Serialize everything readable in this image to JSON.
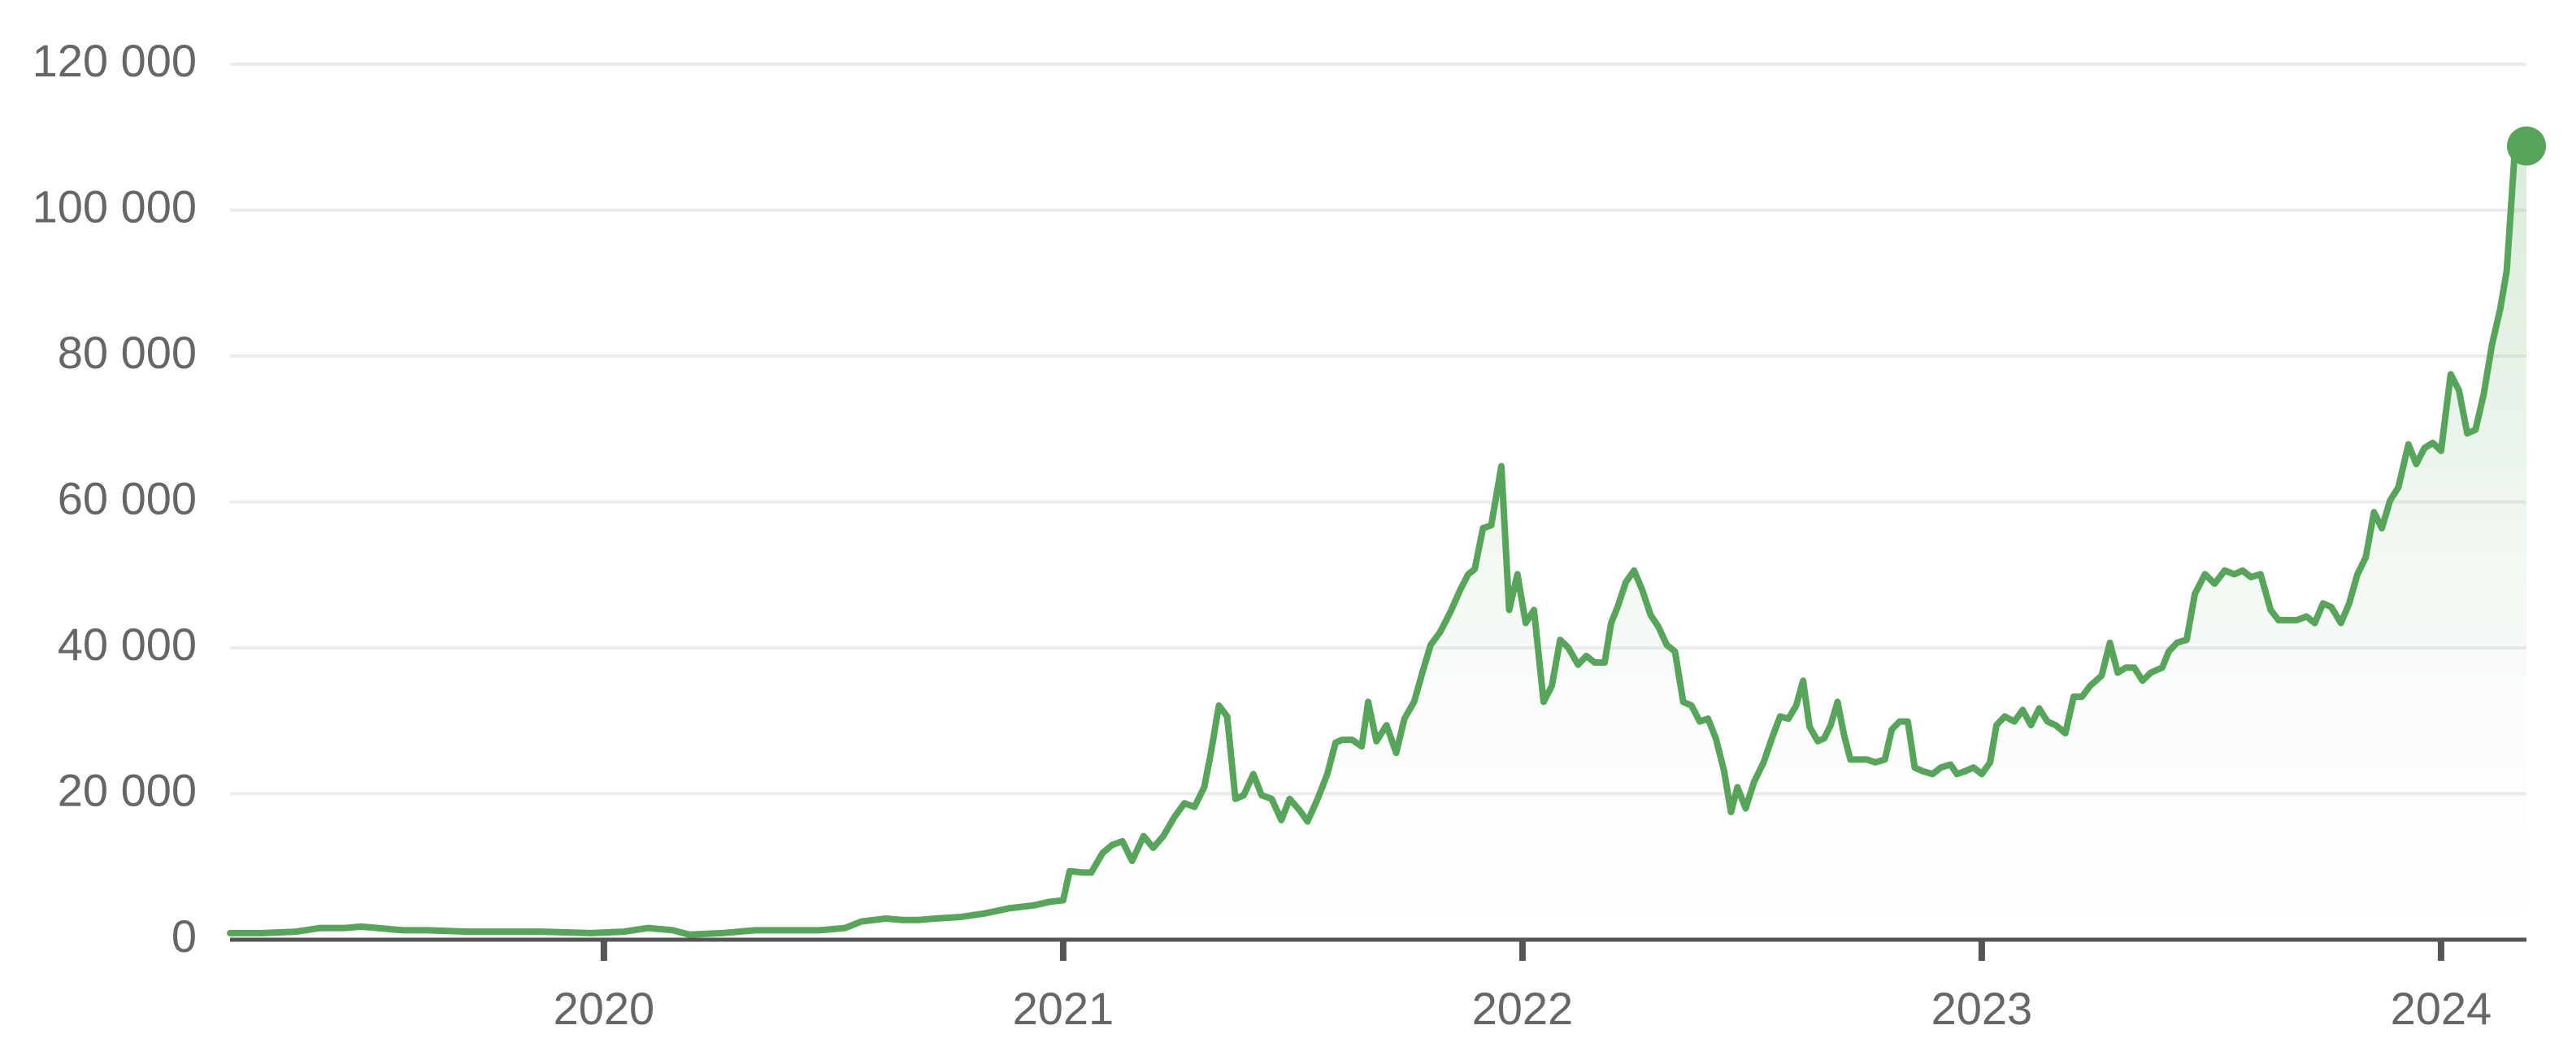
{
  "chart_data": {
    "type": "line",
    "color": "#57a55a",
    "grid": true,
    "fill": true,
    "x": [
      2019.186,
      2019.257,
      2019.329,
      2019.382,
      2019.436,
      2019.471,
      2019.507,
      2019.561,
      2019.614,
      2019.704,
      2019.757,
      2019.864,
      2019.971,
      2020.043,
      2020.096,
      2020.15,
      2020.186,
      2020.257,
      2020.329,
      2020.4,
      2020.471,
      2020.525,
      2020.561,
      2020.614,
      2020.65,
      2020.686,
      2020.721,
      2020.775,
      2020.829,
      2020.882,
      2020.936,
      2020.971,
      2021.0,
      2021.014,
      2021.043,
      2021.061,
      2021.086,
      2021.107,
      2021.129,
      2021.15,
      2021.175,
      2021.196,
      2021.218,
      2021.243,
      2021.264,
      2021.286,
      2021.307,
      2021.321,
      2021.339,
      2021.357,
      2021.375,
      2021.393,
      2021.414,
      2021.432,
      2021.454,
      2021.475,
      2021.493,
      2021.514,
      2021.532,
      2021.554,
      2021.575,
      2021.593,
      2021.607,
      2021.629,
      2021.65,
      2021.664,
      2021.682,
      2021.704,
      2021.725,
      2021.743,
      2021.764,
      2021.782,
      2021.8,
      2021.821,
      2021.843,
      2021.864,
      2021.882,
      2021.896,
      2021.914,
      2021.932,
      2021.954,
      2021.971,
      2021.989,
      2022.007,
      2022.025,
      2022.046,
      2022.064,
      2022.082,
      2022.1,
      2022.121,
      2022.139,
      2022.157,
      2022.179,
      2022.193,
      2022.207,
      2022.225,
      2022.243,
      2022.261,
      2022.279,
      2022.296,
      2022.314,
      2022.332,
      2022.35,
      2022.368,
      2022.386,
      2022.404,
      2022.421,
      2022.439,
      2022.454,
      2022.468,
      2022.486,
      2022.504,
      2022.525,
      2022.543,
      2022.561,
      2022.579,
      2022.596,
      2022.611,
      2022.625,
      2022.643,
      2022.657,
      2022.671,
      2022.686,
      2022.7,
      2022.714,
      2022.732,
      2022.75,
      2022.768,
      2022.789,
      2022.804,
      2022.821,
      2022.839,
      2022.854,
      2022.871,
      2022.893,
      2022.911,
      2022.932,
      2022.946,
      2022.964,
      2022.982,
      2023.0,
      2023.018,
      2023.032,
      2023.05,
      2023.071,
      2023.089,
      2023.107,
      2023.125,
      2023.143,
      2023.161,
      2023.182,
      2023.2,
      2023.218,
      2023.236,
      2023.261,
      2023.279,
      2023.296,
      2023.314,
      2023.332,
      2023.35,
      2023.368,
      2023.393,
      2023.407,
      2023.425,
      2023.446,
      2023.464,
      2023.486,
      2023.507,
      2023.529,
      2023.55,
      2023.568,
      2023.586,
      2023.607,
      2023.629,
      2023.646,
      2023.668,
      2023.686,
      2023.707,
      2023.725,
      2023.743,
      2023.761,
      2023.782,
      2023.8,
      2023.818,
      2023.836,
      2023.854,
      2023.871,
      2023.889,
      2023.907,
      2023.929,
      2023.946,
      2023.964,
      2023.982,
      2024.0,
      2024.021,
      2024.039,
      2024.057,
      2024.075,
      2024.093,
      2024.111,
      2024.129,
      2024.143,
      2024.161,
      2024.186
    ],
    "values": [
      900,
      900,
      1100,
      1600,
      1600,
      1800,
      1600,
      1300,
      1300,
      1100,
      1100,
      1100,
      900,
      1100,
      1600,
      1300,
      700,
      900,
      1300,
      1300,
      1300,
      1600,
      2500,
      2900,
      2700,
      2700,
      2900,
      3100,
      3600,
      4300,
      4700,
      5200,
      5400,
      9400,
      9200,
      9200,
      11900,
      13000,
      13500,
      10800,
      14200,
      12600,
      14200,
      16900,
      18700,
      18200,
      20900,
      25400,
      32100,
      30600,
      19300,
      19800,
      22700,
      19800,
      19300,
      16400,
      19300,
      17800,
      16200,
      19300,
      22700,
      27000,
      27400,
      27400,
      26500,
      32600,
      27200,
      29400,
      25600,
      30300,
      32600,
      36600,
      40400,
      42200,
      44900,
      47900,
      50100,
      50800,
      56400,
      56800,
      64900,
      45200,
      50100,
      43400,
      45200,
      32600,
      34800,
      41100,
      40000,
      37700,
      38900,
      38000,
      38000,
      43400,
      45600,
      49000,
      50600,
      47900,
      44500,
      42900,
      40400,
      39500,
      32600,
      32100,
      29900,
      30300,
      27600,
      23100,
      17500,
      20900,
      18000,
      21600,
      24300,
      27600,
      30600,
      30300,
      32100,
      35500,
      29200,
      27200,
      27600,
      29400,
      32600,
      28100,
      24700,
      24700,
      24700,
      24300,
      24700,
      28800,
      29900,
      29900,
      23600,
      23100,
      22700,
      23600,
      24000,
      22700,
      23100,
      23600,
      22700,
      24300,
      29400,
      30600,
      29900,
      31500,
      29400,
      31700,
      29900,
      29400,
      28300,
      33300,
      33300,
      34800,
      36200,
      40700,
      36600,
      37300,
      37300,
      35500,
      36600,
      37300,
      39500,
      40700,
      41100,
      47400,
      50100,
      48800,
      50600,
      50100,
      50600,
      49700,
      50100,
      45200,
      43800,
      43800,
      43800,
      44300,
      43400,
      46100,
      45600,
      43400,
      46100,
      50100,
      52400,
      58600,
      56400,
      60200,
      62000,
      67900,
      65200,
      67400,
      68100,
      67000,
      77500,
      75300,
      69400,
      69900,
      74800,
      81600,
      86500,
      91700,
      108500,
      108800
    ],
    "xlim": [
      2019.186,
      2024.186
    ],
    "xticks": [
      2020,
      2021,
      2022,
      2023,
      2024
    ],
    "ylim": [
      0,
      120000
    ],
    "yticks": [
      0,
      {
        "value": 20000,
        "label": "20 000"
      },
      {
        "value": 40000,
        "label": "40 000"
      },
      {
        "value": 60000,
        "label": "60 000"
      },
      {
        "value": 80000,
        "label": "80 000"
      },
      {
        "value": 100000,
        "label": "100 000"
      },
      {
        "value": 120000,
        "label": "120 000"
      }
    ]
  }
}
